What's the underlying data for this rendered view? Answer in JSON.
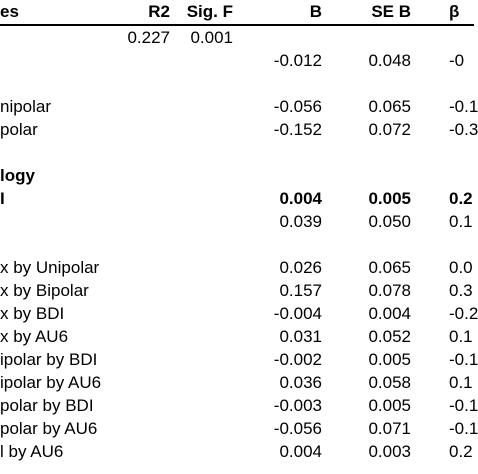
{
  "table": {
    "header": [
      "es",
      "R2",
      "Sig. F",
      "B",
      "SE B",
      "β"
    ],
    "rows": [
      [
        null,
        "0.227",
        "0.001",
        null,
        null,
        null
      ],
      [
        null,
        null,
        null,
        "-0.012",
        "0.048",
        "-0"
      ],
      [
        null,
        null,
        null,
        null,
        null,
        null
      ],
      [
        "nipolar",
        null,
        null,
        "-0.056",
        "0.065",
        "-0.1"
      ],
      [
        "polar",
        null,
        null,
        "-0.152",
        "0.072",
        "-0.3"
      ],
      [
        null,
        null,
        null,
        null,
        null,
        null
      ],
      [
        "logy",
        null,
        null,
        null,
        null,
        null
      ],
      [
        "I",
        null,
        null,
        "0.004",
        "0.005",
        "0.2"
      ],
      [
        null,
        null,
        null,
        "0.039",
        "0.050",
        "0.1"
      ],
      [
        null,
        null,
        null,
        null,
        null,
        null
      ],
      [
        "x by Unipolar",
        null,
        null,
        "0.026",
        "0.065",
        "0.0"
      ],
      [
        "x by Bipolar",
        null,
        null,
        "0.157",
        "0.078",
        "0.3"
      ],
      [
        "x by BDI",
        null,
        null,
        "-0.004",
        "0.004",
        "-0.2"
      ],
      [
        "x by AU6",
        null,
        null,
        "0.031",
        "0.052",
        "0.1"
      ],
      [
        "ipolar by BDI",
        null,
        null,
        "-0.002",
        "0.005",
        "-0.1"
      ],
      [
        "ipolar by AU6",
        null,
        null,
        "0.036",
        "0.058",
        "0.1"
      ],
      [
        "polar by BDI",
        null,
        null,
        "-0.003",
        "0.005",
        "-0.1"
      ],
      [
        "polar by AU6",
        null,
        null,
        "-0.056",
        "0.071",
        "-0.1"
      ],
      [
        "l by AU6",
        null,
        null,
        "0.004",
        "0.003",
        "0.2"
      ]
    ],
    "bold_rows": [
      6,
      7
    ]
  }
}
